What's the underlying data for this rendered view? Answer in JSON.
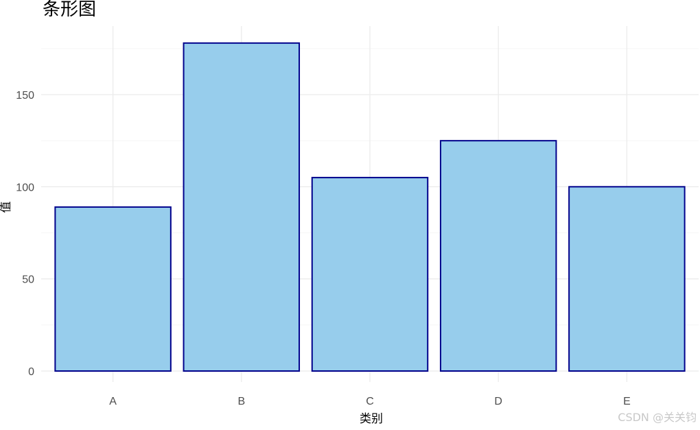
{
  "chart_data": {
    "type": "bar",
    "title": "条形图",
    "xlabel": "类别",
    "ylabel": "值",
    "categories": [
      "A",
      "B",
      "C",
      "D",
      "E"
    ],
    "values": [
      89,
      178,
      105,
      125,
      100
    ],
    "ylim": [
      0,
      185
    ],
    "y_ticks": [
      0,
      50,
      100,
      150
    ],
    "y_tick_labels": [
      "0",
      "50",
      "100",
      "150"
    ],
    "grid": true,
    "legend": "none",
    "colors": {
      "bar_fill": "#97cdec",
      "bar_stroke": "#00008b",
      "grid_major": "#ebebeb",
      "grid_minor": "#f5f5f5",
      "tick_text": "#4d4d4d"
    }
  },
  "watermark": "CSDN @关关钧"
}
